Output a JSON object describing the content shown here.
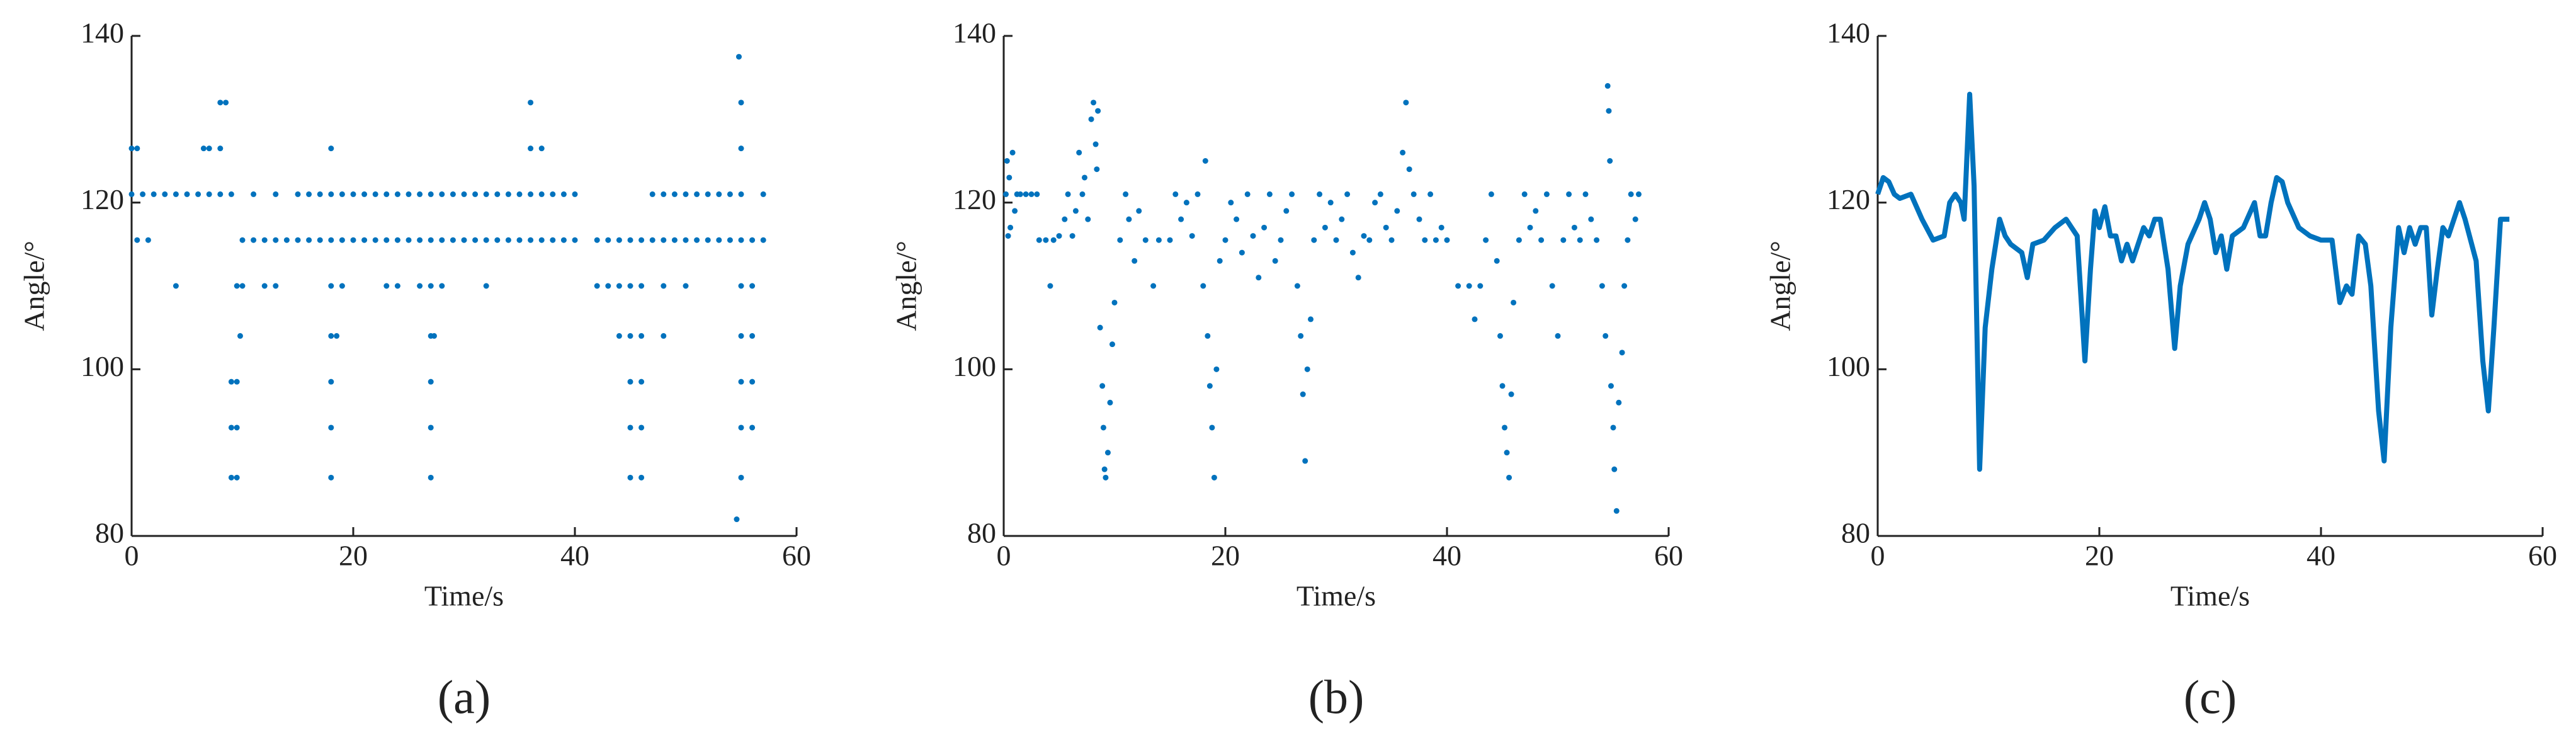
{
  "chart_data": [
    {
      "type": "scatter",
      "caption": "(a)",
      "x_label": "Time/s",
      "y_label": "Angle/°",
      "color": "#0072bd",
      "xlim": [
        0,
        60
      ],
      "ylim": [
        80,
        140
      ],
      "xticks": [
        0,
        20,
        40,
        60
      ],
      "yticks": [
        80,
        100,
        120,
        140
      ],
      "x": [
        0,
        1,
        2,
        3,
        4,
        5,
        6,
        7,
        8,
        9,
        11,
        13,
        15,
        16,
        17,
        18,
        19,
        20,
        21,
        22,
        23,
        24,
        25,
        26,
        27,
        28,
        29,
        30,
        31,
        32,
        33,
        34,
        35,
        36,
        37,
        38,
        39,
        40,
        47,
        48,
        49,
        50,
        51,
        52,
        53,
        54,
        55,
        57,
        0.5,
        1.5,
        10,
        11,
        12,
        13,
        14,
        15,
        16,
        17,
        18,
        19,
        20,
        21,
        22,
        23,
        24,
        25,
        26,
        27,
        28,
        29,
        30,
        31,
        32,
        33,
        34,
        35,
        36,
        37,
        38,
        39,
        40,
        42,
        43,
        44,
        45,
        46,
        47,
        48,
        49,
        50,
        51,
        52,
        53,
        54,
        55,
        56,
        57,
        0,
        0.5,
        6.5,
        7,
        8,
        18,
        36,
        37,
        55,
        8,
        8.5,
        36,
        55,
        54.8,
        4,
        9.5,
        10,
        12,
        13,
        18,
        19,
        23,
        24,
        26,
        27,
        28,
        32,
        42,
        43,
        44,
        45,
        46,
        48,
        50,
        55,
        56,
        9.8,
        18,
        18.5,
        27,
        27.3,
        44,
        45,
        46,
        48,
        55,
        56,
        9,
        9.5,
        18,
        27,
        45,
        46,
        55,
        56,
        9,
        9.5,
        18,
        27,
        45,
        46,
        55,
        56,
        9,
        9.5,
        18,
        27,
        45,
        46,
        55,
        54.6
      ],
      "values": [
        121,
        121,
        121,
        121,
        121,
        121,
        121,
        121,
        121,
        121,
        121,
        121,
        121,
        121,
        121,
        121,
        121,
        121,
        121,
        121,
        121,
        121,
        121,
        121,
        121,
        121,
        121,
        121,
        121,
        121,
        121,
        121,
        121,
        121,
        121,
        121,
        121,
        121,
        121,
        121,
        121,
        121,
        121,
        121,
        121,
        121,
        121,
        121,
        115.5,
        115.5,
        115.5,
        115.5,
        115.5,
        115.5,
        115.5,
        115.5,
        115.5,
        115.5,
        115.5,
        115.5,
        115.5,
        115.5,
        115.5,
        115.5,
        115.5,
        115.5,
        115.5,
        115.5,
        115.5,
        115.5,
        115.5,
        115.5,
        115.5,
        115.5,
        115.5,
        115.5,
        115.5,
        115.5,
        115.5,
        115.5,
        115.5,
        115.5,
        115.5,
        115.5,
        115.5,
        115.5,
        115.5,
        115.5,
        115.5,
        115.5,
        115.5,
        115.5,
        115.5,
        115.5,
        115.5,
        115.5,
        115.5,
        126.5,
        126.5,
        126.5,
        126.5,
        126.5,
        126.5,
        126.5,
        126.5,
        126.5,
        132,
        132,
        132,
        132,
        137.5,
        110,
        110,
        110,
        110,
        110,
        110,
        110,
        110,
        110,
        110,
        110,
        110,
        110,
        110,
        110,
        110,
        110,
        110,
        110,
        110,
        110,
        110,
        104,
        104,
        104,
        104,
        104,
        104,
        104,
        104,
        104,
        104,
        104,
        98.5,
        98.5,
        98.5,
        98.5,
        98.5,
        98.5,
        98.5,
        98.5,
        93,
        93,
        93,
        93,
        93,
        93,
        93,
        93,
        87,
        87,
        87,
        87,
        87,
        87,
        87,
        82
      ]
    },
    {
      "type": "scatter",
      "caption": "(b)",
      "x_label": "Time/s",
      "y_label": "Angle/°",
      "color": "#0072bd",
      "xlim": [
        0,
        60
      ],
      "ylim": [
        80,
        140
      ],
      "xticks": [
        0,
        20,
        40,
        60
      ],
      "yticks": [
        80,
        100,
        120,
        140
      ],
      "x": [
        0.2,
        0.3,
        0.5,
        0.6,
        0.8,
        1,
        1.2,
        0.4,
        1.5,
        2,
        2.5,
        3,
        3.2,
        3.8,
        4.2,
        4.5,
        5,
        5.5,
        5.8,
        6.2,
        6.5,
        6.8,
        7.1,
        7.3,
        7.6,
        7.9,
        8.1,
        8.3,
        8.4,
        8.5,
        8.7,
        8.9,
        9.0,
        9.1,
        9.2,
        9.4,
        9.6,
        9.8,
        10,
        10.5,
        11,
        11.3,
        11.8,
        12.2,
        12.8,
        13.5,
        14,
        15,
        15.5,
        16,
        16.5,
        17,
        17.5,
        18,
        18.2,
        18.4,
        18.6,
        18.8,
        19,
        19.2,
        19.5,
        20,
        20.5,
        21,
        21.5,
        22,
        22.5,
        23,
        23.5,
        24,
        24.5,
        25,
        25.5,
        26,
        26.5,
        26.8,
        27,
        27.2,
        27.4,
        27.7,
        28,
        28.5,
        29,
        29.5,
        30,
        30.5,
        31,
        31.5,
        32,
        32.5,
        33,
        33.5,
        34,
        34.5,
        35,
        35.5,
        36,
        36.3,
        36.6,
        37,
        37.5,
        38,
        38.5,
        39,
        39.5,
        40,
        41,
        42,
        42.5,
        43,
        43.5,
        44,
        44.5,
        44.8,
        45,
        45.2,
        45.4,
        45.6,
        45.8,
        46,
        46.5,
        47,
        47.5,
        48,
        48.5,
        49,
        49.5,
        50,
        50.5,
        51,
        51.5,
        52,
        52.5,
        53,
        53.5,
        54,
        54.3,
        54.5,
        54.6,
        54.7,
        54.8,
        55,
        55.1,
        55.3,
        55.5,
        55.8,
        56,
        56.3,
        56.6,
        57,
        57.3
      ],
      "values": [
        121,
        125,
        123,
        117,
        126,
        119,
        121,
        116,
        121,
        121,
        121,
        121,
        115.5,
        115.5,
        110,
        115.5,
        116,
        118,
        121,
        116,
        119,
        126,
        121,
        123,
        118,
        130,
        132,
        127,
        124,
        131,
        105,
        98,
        93,
        88,
        87,
        90,
        96,
        103,
        108,
        115.5,
        121,
        118,
        113,
        119,
        115.5,
        110,
        115.5,
        115.5,
        121,
        118,
        120,
        116,
        121,
        110,
        125,
        104,
        98,
        93,
        87,
        100,
        113,
        115.5,
        120,
        118,
        114,
        121,
        116,
        111,
        117,
        121,
        113,
        115.5,
        119,
        121,
        110,
        104,
        97,
        89,
        100,
        106,
        115.5,
        121,
        117,
        120,
        115.5,
        118,
        121,
        114,
        111,
        116,
        115.5,
        120,
        121,
        117,
        115.5,
        119,
        126,
        132,
        124,
        121,
        118,
        115.5,
        121,
        115.5,
        117,
        115.5,
        110,
        110,
        106,
        110,
        115.5,
        121,
        113,
        104,
        98,
        93,
        90,
        87,
        97,
        108,
        115.5,
        121,
        117,
        119,
        115.5,
        121,
        110,
        104,
        115.5,
        121,
        117,
        115.5,
        121,
        118,
        115.5,
        110,
        104,
        134,
        131,
        125,
        98,
        93,
        88,
        83,
        96,
        102,
        110,
        115.5,
        121,
        118,
        121
      ]
    },
    {
      "type": "line",
      "caption": "(c)",
      "x_label": "Time/s",
      "y_label": "Angle/°",
      "color": "#0072bd",
      "xlim": [
        0,
        60
      ],
      "ylim": [
        80,
        140
      ],
      "xticks": [
        0,
        20,
        40,
        60
      ],
      "yticks": [
        80,
        100,
        120,
        140
      ],
      "x": [
        0,
        0.5,
        1,
        1.5,
        2,
        3,
        4,
        5,
        6,
        6.5,
        7,
        7.5,
        7.8,
        8.3,
        8.7,
        9.2,
        9.7,
        10.3,
        11,
        11.5,
        12,
        13,
        13.5,
        14,
        15,
        16,
        17,
        17.5,
        18,
        18.7,
        19.2,
        19.6,
        20,
        20.5,
        21,
        21.5,
        22,
        22.5,
        23,
        23.5,
        24,
        24.5,
        25,
        25.5,
        26.2,
        26.8,
        27.3,
        28,
        29,
        29.5,
        30,
        30.5,
        31,
        31.5,
        32,
        33,
        34,
        34.5,
        35,
        35.5,
        36,
        36.5,
        37,
        38,
        39,
        40,
        41,
        41.7,
        42.3,
        42.8,
        43.4,
        44,
        44.5,
        45.2,
        45.7,
        46.3,
        47,
        47.5,
        48,
        48.5,
        49,
        49.5,
        50,
        50.5,
        51,
        51.5,
        52,
        52.5,
        53,
        54,
        54.6,
        55.1,
        55.6,
        56.2,
        57
      ],
      "values": [
        121,
        123,
        122.5,
        121,
        120.5,
        121,
        118,
        115.5,
        116,
        120,
        121,
        120,
        118,
        133,
        122,
        88,
        105,
        112,
        118,
        116,
        115,
        114,
        111,
        115,
        115.5,
        117,
        118,
        117,
        116,
        101,
        112,
        119,
        117,
        119.5,
        116,
        116,
        113,
        115,
        113,
        115,
        117,
        116,
        118,
        118,
        112,
        102.5,
        110,
        115,
        118,
        120,
        118,
        114,
        116,
        112,
        116,
        117,
        120,
        116,
        116,
        120,
        123,
        122.5,
        120,
        117,
        116,
        115.5,
        115.5,
        108,
        110,
        109,
        116,
        115,
        110,
        95,
        89,
        105,
        117,
        114,
        117,
        115,
        117,
        117,
        106.5,
        112,
        117,
        116,
        118,
        120,
        118,
        113,
        101,
        95,
        105,
        118,
        118
      ]
    }
  ]
}
